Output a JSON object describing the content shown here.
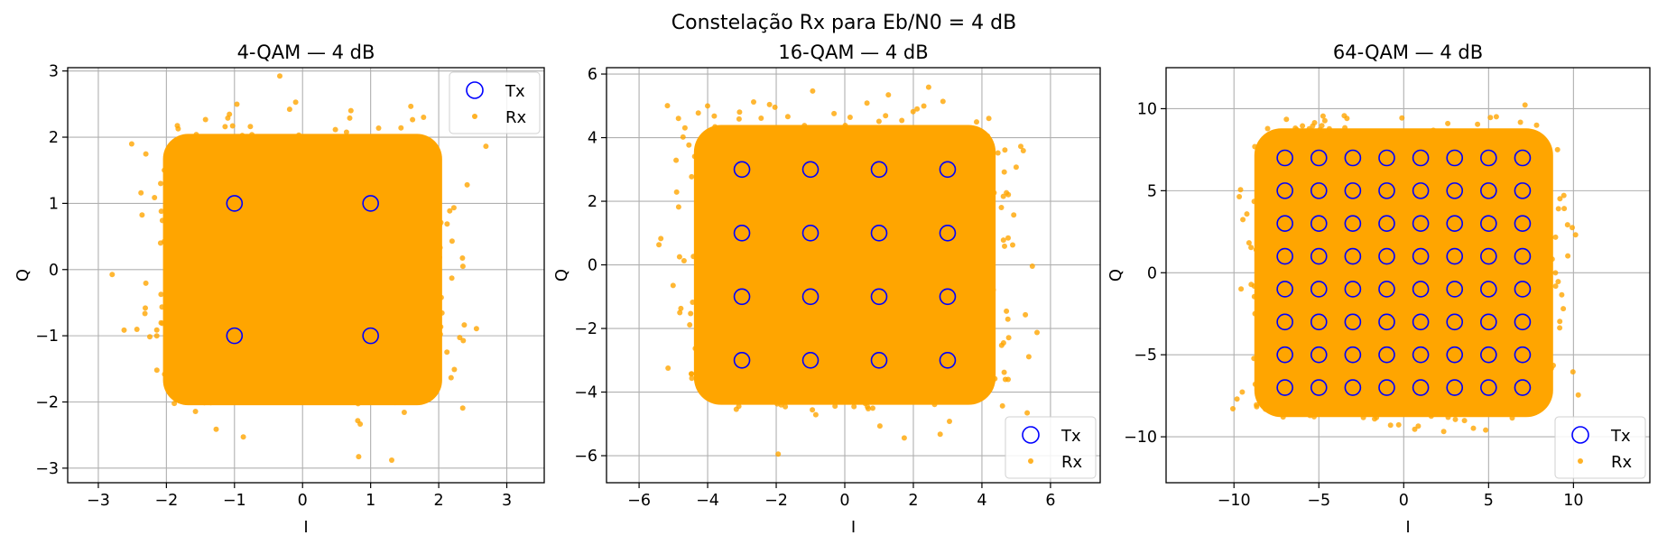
{
  "figure": {
    "suptitle": "Constelação Rx para Eb/N0 = 4 dB"
  },
  "colors": {
    "tx": "#0000ff",
    "rx": "#ffa500",
    "grid": "#b0b0b0",
    "frame": "#000000"
  },
  "chart_data": [
    {
      "type": "scatter",
      "title": "4-QAM — 4 dB",
      "xlabel": "I",
      "ylabel": "Q",
      "xlim": [
        -3.45,
        3.55
      ],
      "ylim": [
        -3.22,
        3.05
      ],
      "xticks": [
        -3,
        -2,
        -1,
        0,
        1,
        2,
        3
      ],
      "xtick_labels": [
        "−3",
        "−2",
        "−1",
        "0",
        "1",
        "2",
        "3"
      ],
      "yticks": [
        -3,
        -2,
        -1,
        0,
        1,
        2,
        3
      ],
      "ytick_labels": [
        "−3",
        "−2",
        "−1",
        "0",
        "1",
        "2",
        "3"
      ],
      "grid": true,
      "legend_position": "upper right",
      "series": [
        {
          "name": "Tx",
          "marker": "open-circle",
          "color": "#0000ff",
          "levels": [
            -1,
            1
          ]
        },
        {
          "name": "Rx",
          "marker": "dot",
          "color": "#ffa500",
          "noise_sigma": 0.4,
          "spread": 2.05
        }
      ]
    },
    {
      "type": "scatter",
      "title": "16-QAM — 4 dB",
      "xlabel": "I",
      "ylabel": "Q",
      "xlim": [
        -6.95,
        7.45
      ],
      "ylim": [
        -6.85,
        6.2
      ],
      "xticks": [
        -6,
        -4,
        -2,
        0,
        2,
        4,
        6
      ],
      "xtick_labels": [
        "−6",
        "−4",
        "−2",
        "0",
        "2",
        "4",
        "6"
      ],
      "yticks": [
        -6,
        -4,
        -2,
        0,
        2,
        4,
        6
      ],
      "ytick_labels": [
        "−6",
        "−4",
        "−2",
        "0",
        "2",
        "4",
        "6"
      ],
      "grid": true,
      "legend_position": "lower right",
      "series": [
        {
          "name": "Tx",
          "marker": "open-circle",
          "color": "#0000ff",
          "levels": [
            -3,
            -1,
            1,
            3
          ]
        },
        {
          "name": "Rx",
          "marker": "dot",
          "color": "#ffa500",
          "noise_sigma": 0.7,
          "spread": 4.4
        }
      ]
    },
    {
      "type": "scatter",
      "title": "64-QAM — 4 dB",
      "xlabel": "I",
      "ylabel": "Q",
      "xlim": [
        -14,
        14.5
      ],
      "ylim": [
        -12.8,
        12.5
      ],
      "xticks": [
        -10,
        -5,
        0,
        5,
        10
      ],
      "xtick_labels": [
        "−10",
        "−5",
        "0",
        "5",
        "10"
      ],
      "yticks": [
        -10,
        -5,
        0,
        5,
        10
      ],
      "ytick_labels": [
        "−10",
        "−5",
        "0",
        "5",
        "10"
      ],
      "grid": true,
      "legend_position": "lower right",
      "series": [
        {
          "name": "Tx",
          "marker": "open-circle",
          "color": "#0000ff",
          "levels": [
            -7,
            -5,
            -3,
            -1,
            1,
            3,
            5,
            7
          ]
        },
        {
          "name": "Rx",
          "marker": "dot",
          "color": "#ffa500",
          "noise_sigma": 1.0,
          "spread": 8.8
        }
      ]
    }
  ]
}
